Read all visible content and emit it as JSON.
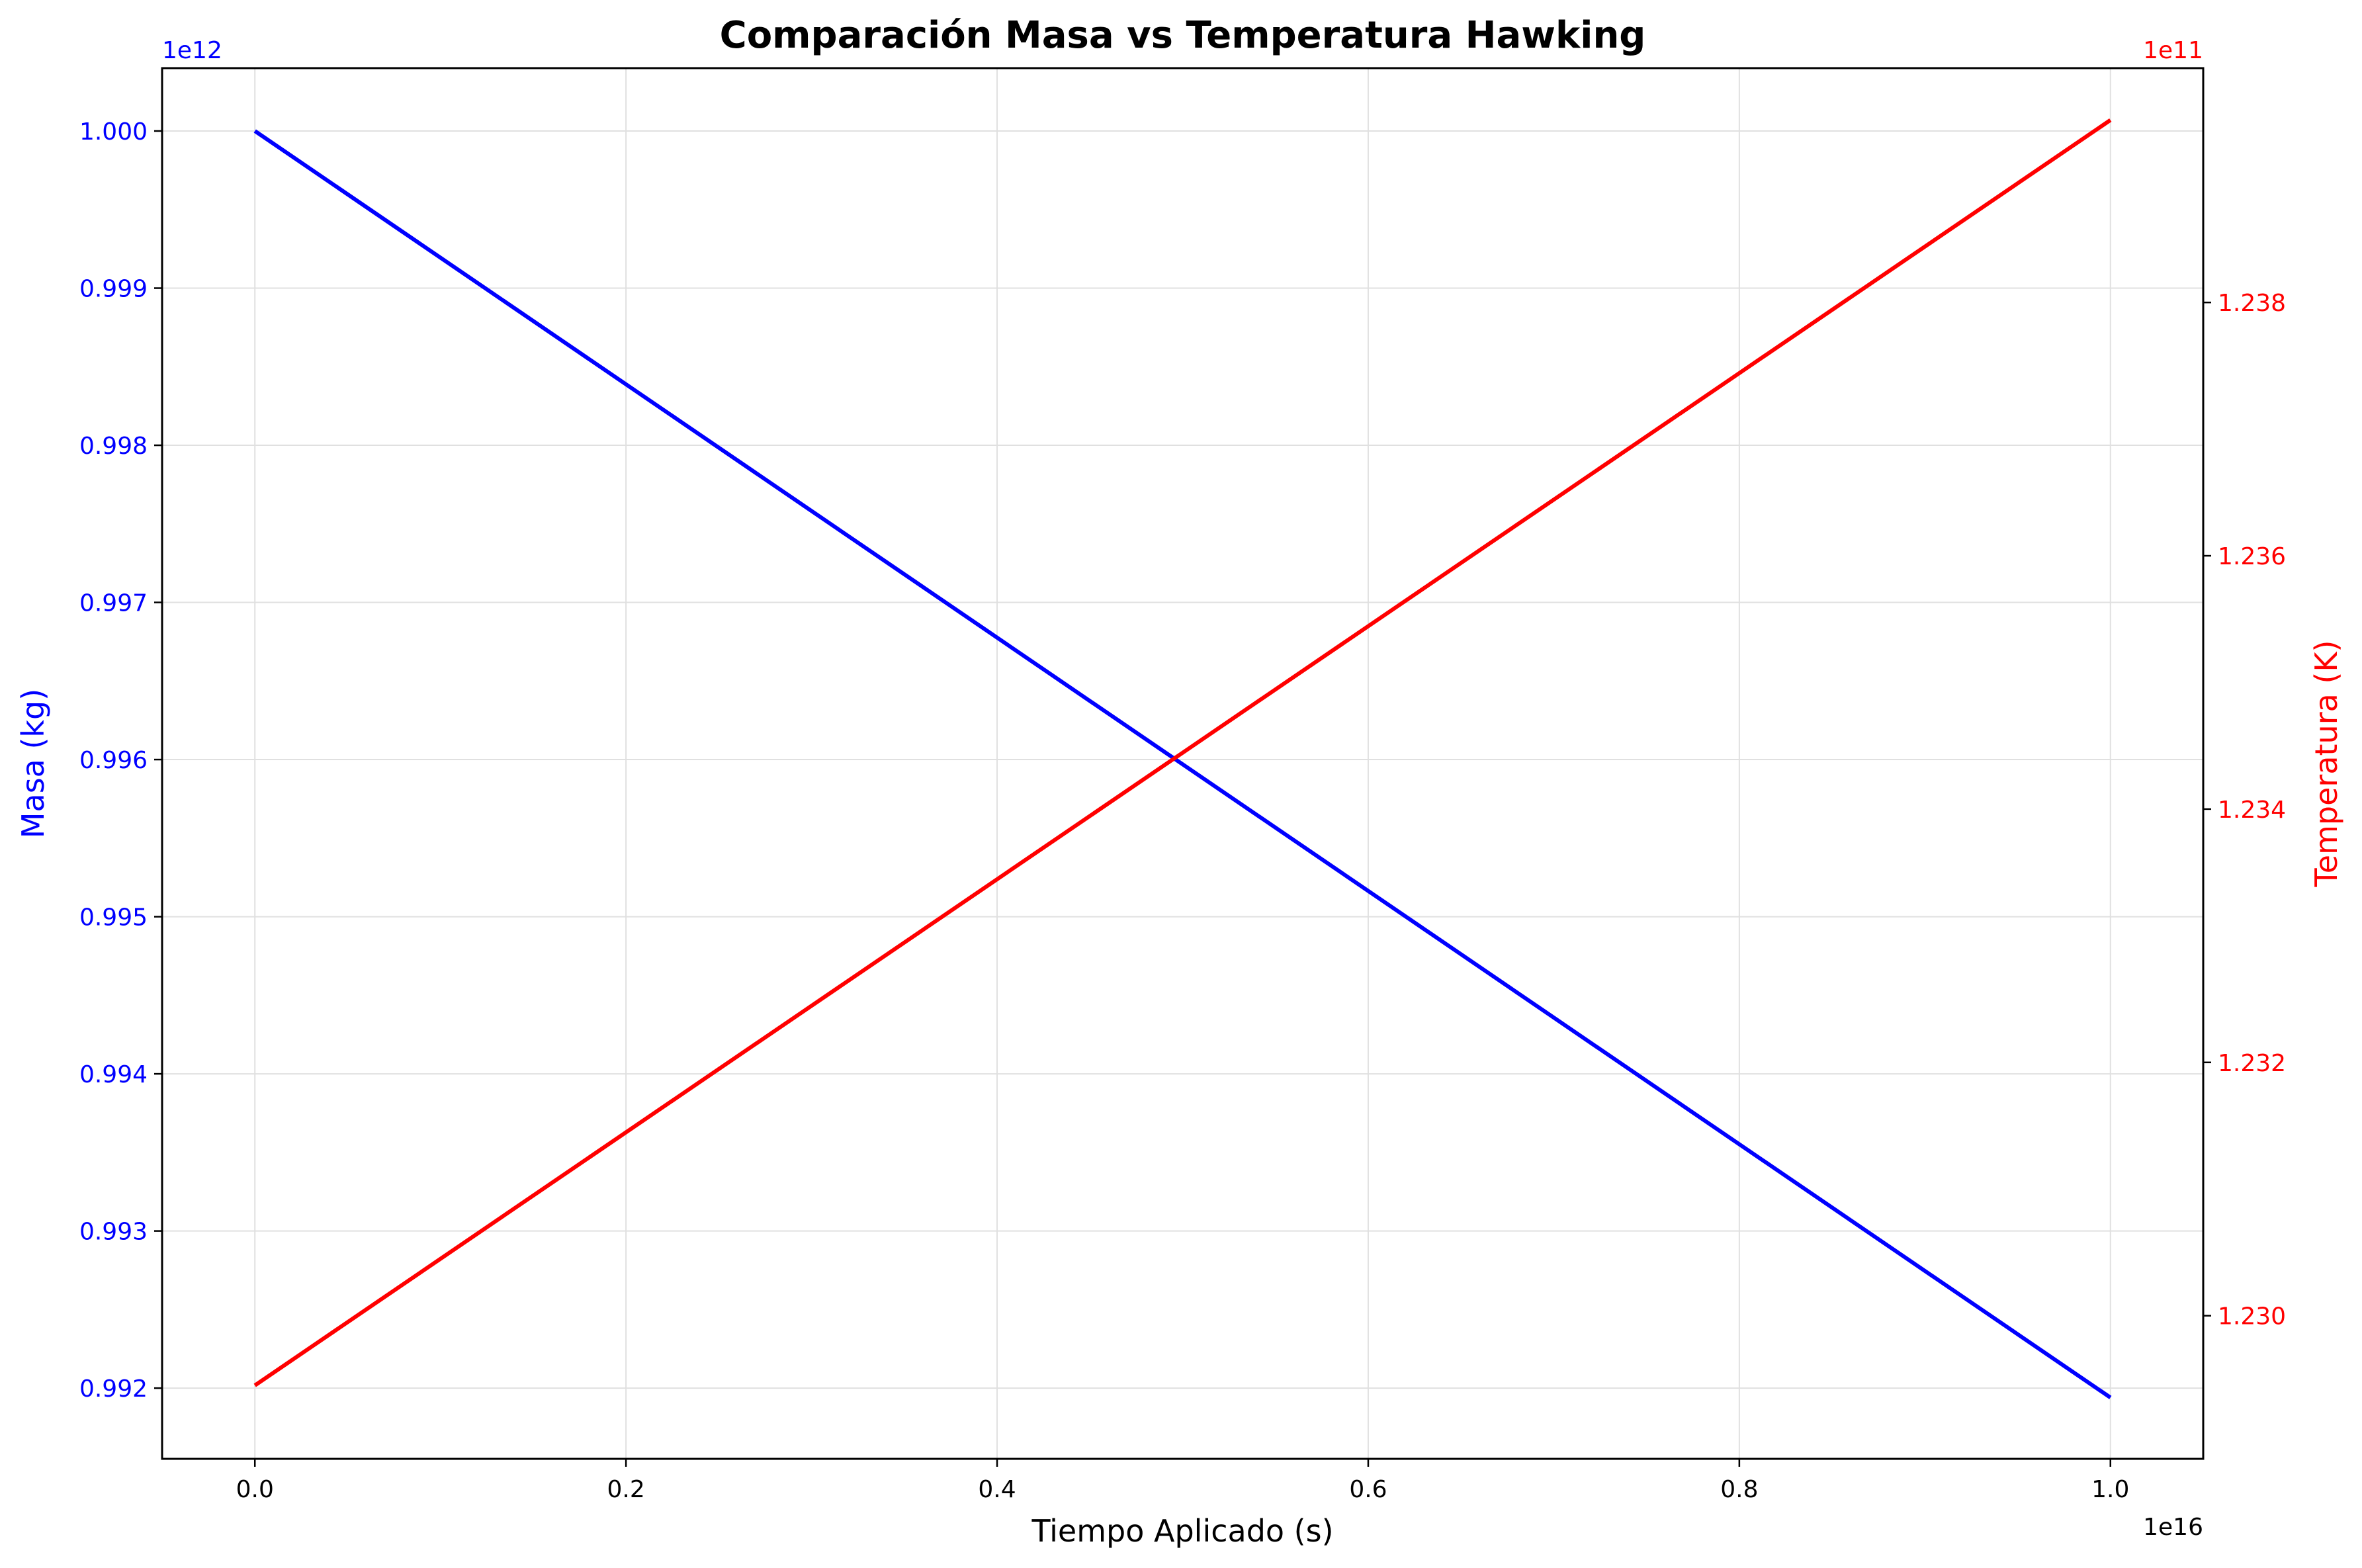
{
  "chart_data": {
    "type": "line",
    "title": "Comparación Masa vs Temperatura Hawking",
    "xlabel": "Tiempo Aplicado (s)",
    "ylabel_left": "Masa (kg)",
    "ylabel_right": "Temperatura (K)",
    "x_offset_label": "1e16",
    "y_left_offset_label": "1e12",
    "y_right_offset_label": "1e11",
    "xlim": [
      -0.05,
      1.05
    ],
    "ylim_left": [
      0.99155,
      1.0004
    ],
    "ylim_right": [
      1.22887,
      1.23985
    ],
    "x_ticks": [
      0.0,
      0.2,
      0.4,
      0.6,
      0.8,
      1.0
    ],
    "x_tick_labels": [
      "0.0",
      "0.2",
      "0.4",
      "0.6",
      "0.8",
      "1.0"
    ],
    "y_left_ticks": [
      0.992,
      0.993,
      0.994,
      0.995,
      0.996,
      0.997,
      0.998,
      0.999,
      1.0
    ],
    "y_left_tick_labels": [
      "0.992",
      "0.993",
      "0.994",
      "0.995",
      "0.996",
      "0.997",
      "0.998",
      "0.999",
      "1.000"
    ],
    "y_right_ticks": [
      1.23,
      1.232,
      1.234,
      1.236,
      1.238
    ],
    "y_right_tick_labels": [
      "1.230",
      "1.232",
      "1.234",
      "1.236",
      "1.238"
    ],
    "grid": true,
    "colors": {
      "left_axis": "#0000ff",
      "right_axis": "#ff0000",
      "grid": "#e0e0e0",
      "frame": "#000000"
    },
    "series": [
      {
        "axis": "left",
        "color": "#0000ff",
        "x": [
          0.0,
          1.0
        ],
        "y": [
          1.0,
          0.99194
        ]
      },
      {
        "axis": "right",
        "color": "#ff0000",
        "x": [
          0.0,
          1.0
        ],
        "y": [
          1.22945,
          1.23944
        ]
      }
    ]
  }
}
